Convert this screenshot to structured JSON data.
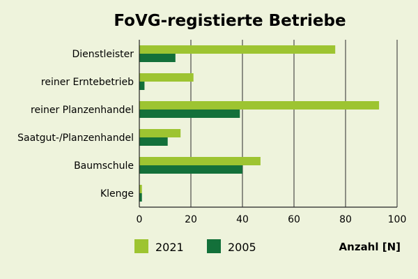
{
  "chart_data": {
    "type": "bar",
    "orientation": "horizontal",
    "title": "FoVG-registierte Betriebe",
    "categories": [
      "Dienstleister",
      "reiner Erntebetrieb",
      "reiner Planzenhandel",
      "Saatgut-/Planzenhandel",
      "Baumschule",
      "Klenge"
    ],
    "series": [
      {
        "name": "2021",
        "color": "#9dc431",
        "values": [
          76,
          21,
          93,
          16,
          47,
          1
        ]
      },
      {
        "name": "2005",
        "color": "#13703a",
        "values": [
          14,
          2,
          39,
          11,
          40,
          1
        ]
      }
    ],
    "xlim": [
      0,
      100
    ],
    "xticks": [
      "0",
      "20",
      "40",
      "60",
      "80",
      "100"
    ],
    "xlabel": "Anzahl [N]",
    "grid": "vertical",
    "legend_position": "bottom-left"
  }
}
